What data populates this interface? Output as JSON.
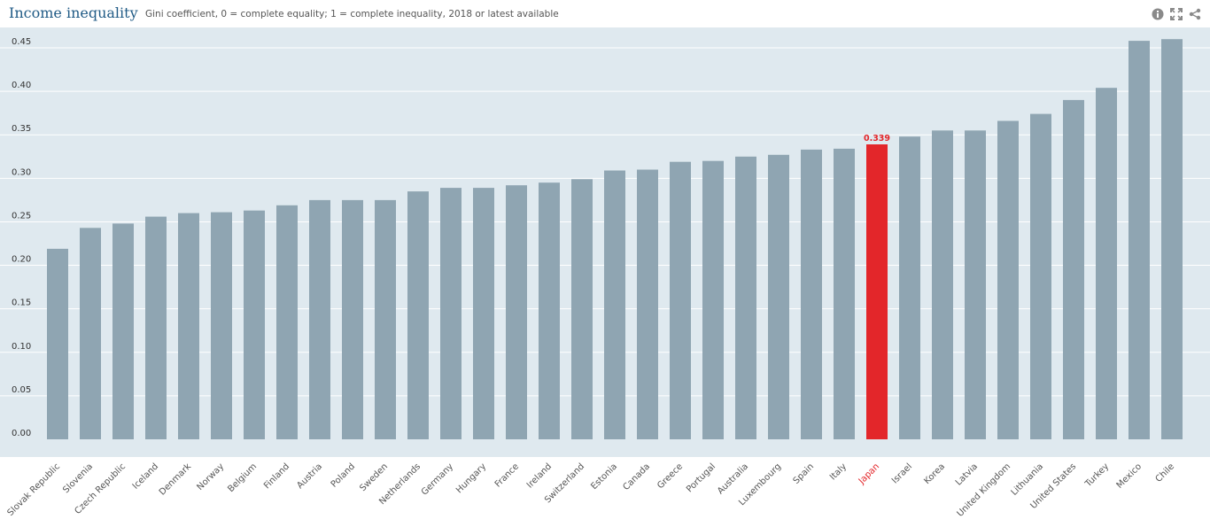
{
  "header": {
    "title": "Income inequality",
    "subtitle": "Gini coefficient, 0 = complete equality; 1 = complete inequality, 2018 or latest available"
  },
  "toolbar": {
    "icons": [
      "info-icon",
      "fullscreen-icon",
      "share-icon"
    ]
  },
  "colors": {
    "bar": "#8fa5b2",
    "highlight": "#e3262a",
    "plot_bg": "#dfe9ef",
    "gridline": "#ffffff",
    "tick_text": "#333333",
    "title": "#1f5a85"
  },
  "chart_data": {
    "type": "bar",
    "title": "Income inequality",
    "subtitle": "Gini coefficient, 0 = complete equality; 1 = complete inequality, 2018 or latest available",
    "xlabel": "",
    "ylabel": "",
    "ylim": [
      0,
      0.48
    ],
    "yticks": [
      "0.00",
      "0.05",
      "0.10",
      "0.15",
      "0.20",
      "0.25",
      "0.30",
      "0.35",
      "0.40",
      "0.45"
    ],
    "grid": true,
    "highlight": {
      "category": "Japan",
      "label": "0.339"
    },
    "categories": [
      "Slovak Republic",
      "Slovenia",
      "Czech Republic",
      "Iceland",
      "Denmark",
      "Norway",
      "Belgium",
      "Finland",
      "Austria",
      "Poland",
      "Sweden",
      "Netherlands",
      "Germany",
      "Hungary",
      "France",
      "Ireland",
      "Switzerland",
      "Estonia",
      "Canada",
      "Greece",
      "Portugal",
      "Australia",
      "Luxembourg",
      "Spain",
      "Italy",
      "Japan",
      "Israel",
      "Korea",
      "Latvia",
      "United Kingdom",
      "Lithuania",
      "United States",
      "Turkey",
      "Mexico",
      "Chile"
    ],
    "values": [
      0.219,
      0.243,
      0.248,
      0.256,
      0.26,
      0.261,
      0.263,
      0.269,
      0.275,
      0.275,
      0.275,
      0.285,
      0.289,
      0.289,
      0.292,
      0.295,
      0.299,
      0.309,
      0.31,
      0.319,
      0.32,
      0.325,
      0.327,
      0.333,
      0.334,
      0.339,
      0.348,
      0.355,
      0.355,
      0.366,
      0.374,
      0.39,
      0.404,
      0.458,
      0.46
    ]
  }
}
